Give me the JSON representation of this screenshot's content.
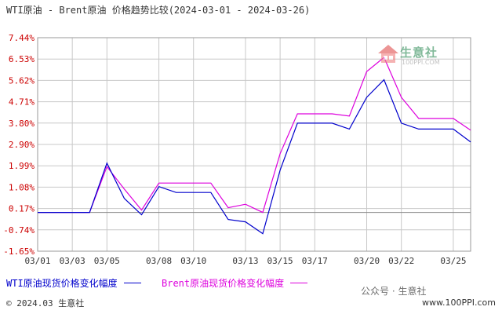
{
  "title": "WTI原油 - Brent原油 价格趋势比较(2024-03-01 - 2024-03-26)",
  "footer": "© 2024.03 生意社",
  "watermark": {
    "name": "生意社",
    "url": "100PPI.COM"
  },
  "wechat": "公众号 · 生意社",
  "website": "www.100PPI.com",
  "colors": {
    "wti": "#0000cc",
    "brent": "#dd00dd",
    "axis_text": "#cc0000",
    "grid": "#c8c8c8",
    "zero_line": "#888888"
  },
  "chart_data": {
    "type": "line",
    "title": "WTI原油 - Brent原油 价格趋势比较(2024-03-01 - 2024-03-26)",
    "x": [
      "03/01",
      "03/02",
      "03/03",
      "03/04",
      "03/05",
      "03/06",
      "03/07",
      "03/08",
      "03/09",
      "03/10",
      "03/11",
      "03/12",
      "03/13",
      "03/14",
      "03/15",
      "03/16",
      "03/17",
      "03/18",
      "03/19",
      "03/20",
      "03/21",
      "03/22",
      "03/23",
      "03/24",
      "03/25",
      "03/26"
    ],
    "x_tick_labels": [
      "03/01",
      "03/03",
      "03/05",
      "03/08",
      "03/10",
      "03/13",
      "03/15",
      "03/17",
      "03/20",
      "03/22",
      "03/25"
    ],
    "y_tick_labels": [
      "7.44%",
      "6.53%",
      "5.62%",
      "4.71%",
      "3.80%",
      "2.90%",
      "1.99%",
      "1.08%",
      "0.17%",
      "-0.74%",
      "-1.65%"
    ],
    "ylim": [
      -1.65,
      7.44
    ],
    "grid": true,
    "legend_position": "bottom",
    "series": [
      {
        "name": "WTI原油现货价格变化幅度",
        "values": [
          0,
          0,
          0,
          0,
          2.1,
          0.6,
          -0.1,
          1.1,
          0.85,
          0.85,
          0.85,
          -0.3,
          -0.4,
          -0.9,
          1.8,
          3.8,
          3.8,
          3.8,
          3.55,
          4.9,
          5.65,
          3.8,
          3.55,
          3.55,
          3.55,
          3.0
        ]
      },
      {
        "name": "Brent原油现货价格变化幅度",
        "values": [
          0,
          0,
          0,
          0,
          1.95,
          1.0,
          0.1,
          1.25,
          1.25,
          1.25,
          1.25,
          0.2,
          0.35,
          0.0,
          2.5,
          4.2,
          4.2,
          4.2,
          4.1,
          6.0,
          6.6,
          4.9,
          4.0,
          4.0,
          4.0,
          3.5
        ]
      }
    ]
  }
}
